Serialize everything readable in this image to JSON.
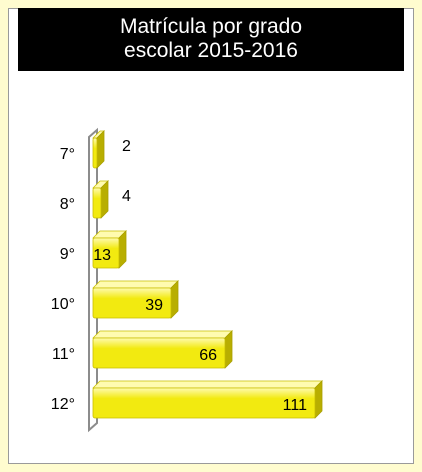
{
  "colors": {
    "page_background": "#fffccf",
    "title_background": "#000000",
    "title_text": "#ffffff",
    "bar_fill": "#f2ea10",
    "bar_highlight": "#fffbb0",
    "bar_shadow": "#b8ae00"
  },
  "chart_data": {
    "type": "bar",
    "orientation": "horizontal",
    "style": "3d",
    "title_lines": [
      "Matrícula por grado",
      "escolar 2015-2016"
    ],
    "categories": [
      "7°",
      "8°",
      "9°",
      "10°",
      "11°",
      "12°"
    ],
    "values": [
      2,
      4,
      13,
      39,
      66,
      111
    ],
    "data_labels": [
      "2",
      "4",
      "13",
      "39",
      "66",
      "111"
    ],
    "xlim": [
      0,
      120
    ],
    "grid": false,
    "legend": "none"
  }
}
